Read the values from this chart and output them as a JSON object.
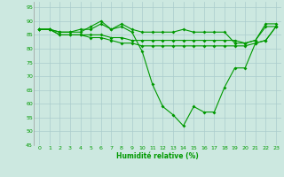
{
  "x": [
    0,
    1,
    2,
    3,
    4,
    5,
    6,
    7,
    8,
    9,
    10,
    11,
    12,
    13,
    14,
    15,
    16,
    17,
    18,
    19,
    20,
    21,
    22,
    23
  ],
  "line1": [
    87,
    87,
    86,
    86,
    86,
    88,
    90,
    87,
    88,
    86,
    79,
    67,
    59,
    56,
    52,
    59,
    57,
    57,
    66,
    73,
    73,
    82,
    83,
    88
  ],
  "line2": [
    87,
    87,
    86,
    86,
    87,
    87,
    89,
    87,
    89,
    87,
    86,
    86,
    86,
    86,
    87,
    86,
    86,
    86,
    86,
    82,
    82,
    83,
    89,
    89
  ],
  "line3": [
    87,
    87,
    85,
    85,
    85,
    85,
    85,
    84,
    84,
    83,
    83,
    83,
    83,
    83,
    83,
    83,
    83,
    83,
    83,
    83,
    82,
    83,
    88,
    88
  ],
  "line4": [
    87,
    87,
    85,
    85,
    85,
    84,
    84,
    83,
    82,
    82,
    81,
    81,
    81,
    81,
    81,
    81,
    81,
    81,
    81,
    81,
    81,
    82,
    83,
    88
  ],
  "bg_color": "#cce8e0",
  "grid_color": "#aacccc",
  "line_color": "#009900",
  "xlabel": "Humidité relative (%)",
  "ylim": [
    45,
    97
  ],
  "xlim": [
    -0.5,
    23.5
  ],
  "yticks": [
    45,
    50,
    55,
    60,
    65,
    70,
    75,
    80,
    85,
    90,
    95
  ],
  "xticks": [
    0,
    1,
    2,
    3,
    4,
    5,
    6,
    7,
    8,
    9,
    10,
    11,
    12,
    13,
    14,
    15,
    16,
    17,
    18,
    19,
    20,
    21,
    22,
    23
  ]
}
